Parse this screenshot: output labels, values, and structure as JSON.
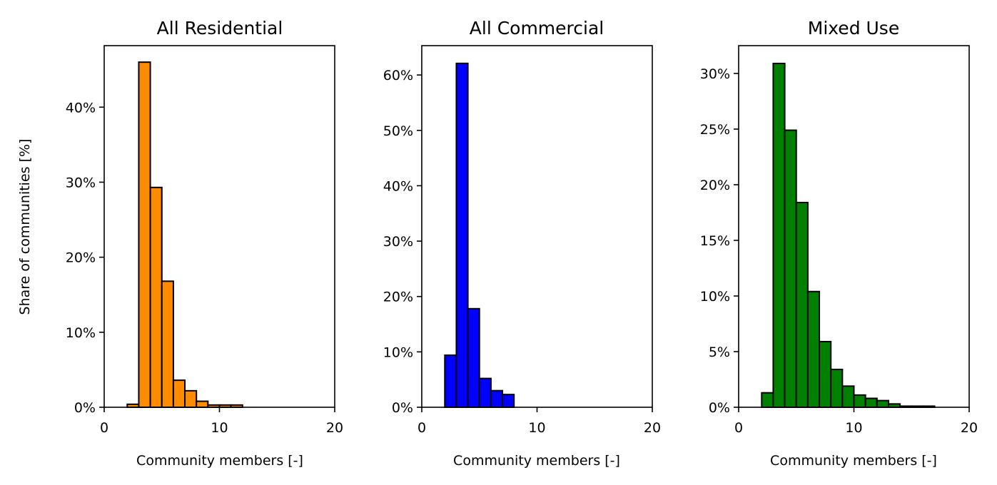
{
  "figure": {
    "ylabel": "Share of communities [%]"
  },
  "chart_data": [
    {
      "type": "bar",
      "title": "All Residential",
      "xlabel": "Community members [-]",
      "ylabel": "Share of communities [%]",
      "xlim": [
        0,
        20
      ],
      "ylim": [
        0,
        48.2
      ],
      "xticks": [
        0,
        10,
        20
      ],
      "yticks": [
        0,
        10,
        20,
        30,
        40
      ],
      "ytick_format": "percent",
      "bar_width": 1,
      "color": "#ff8c00",
      "edge_color": "#000000",
      "grid": false,
      "bins": [
        {
          "x0": 2,
          "value": 0.4
        },
        {
          "x0": 3,
          "value": 46.0
        },
        {
          "x0": 4,
          "value": 29.3
        },
        {
          "x0": 5,
          "value": 16.8
        },
        {
          "x0": 6,
          "value": 3.6
        },
        {
          "x0": 7,
          "value": 2.2
        },
        {
          "x0": 8,
          "value": 0.8
        },
        {
          "x0": 9,
          "value": 0.3
        },
        {
          "x0": 10,
          "value": 0.3
        },
        {
          "x0": 11,
          "value": 0.3
        }
      ]
    },
    {
      "type": "bar",
      "title": "All Commercial",
      "xlabel": "Community members [-]",
      "ylabel": "",
      "xlim": [
        0,
        20
      ],
      "ylim": [
        0,
        65.3
      ],
      "xticks": [
        0,
        10,
        20
      ],
      "yticks": [
        0,
        10,
        20,
        30,
        40,
        50,
        60
      ],
      "ytick_format": "percent",
      "bar_width": 1,
      "color": "#0000ff",
      "edge_color": "#000000",
      "grid": false,
      "bins": [
        {
          "x0": 2,
          "value": 9.4
        },
        {
          "x0": 3,
          "value": 62.1
        },
        {
          "x0": 4,
          "value": 17.8
        },
        {
          "x0": 5,
          "value": 5.2
        },
        {
          "x0": 6,
          "value": 3.0
        },
        {
          "x0": 7,
          "value": 2.3
        }
      ]
    },
    {
      "type": "bar",
      "title": "Mixed Use",
      "xlabel": "Community members [-]",
      "ylabel": "",
      "xlim": [
        0,
        20
      ],
      "ylim": [
        0,
        32.5
      ],
      "xticks": [
        0,
        10,
        20
      ],
      "yticks": [
        0,
        5,
        10,
        15,
        20,
        25,
        30
      ],
      "ytick_format": "percent",
      "bar_width": 1,
      "color": "#008000",
      "edge_color": "#000000",
      "grid": false,
      "bins": [
        {
          "x0": 2,
          "value": 1.3
        },
        {
          "x0": 3,
          "value": 30.9
        },
        {
          "x0": 4,
          "value": 24.9
        },
        {
          "x0": 5,
          "value": 18.4
        },
        {
          "x0": 6,
          "value": 10.4
        },
        {
          "x0": 7,
          "value": 5.9
        },
        {
          "x0": 8,
          "value": 3.4
        },
        {
          "x0": 9,
          "value": 1.9
        },
        {
          "x0": 10,
          "value": 1.1
        },
        {
          "x0": 11,
          "value": 0.8
        },
        {
          "x0": 12,
          "value": 0.6
        },
        {
          "x0": 13,
          "value": 0.3
        },
        {
          "x0": 14,
          "value": 0.1
        },
        {
          "x0": 15,
          "value": 0.1
        },
        {
          "x0": 16,
          "value": 0.1
        }
      ]
    }
  ]
}
